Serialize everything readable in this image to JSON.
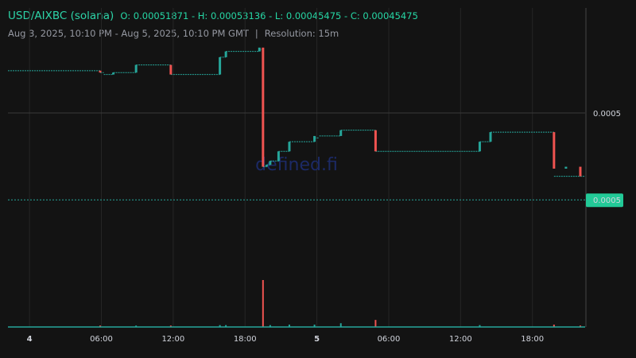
{
  "header": {
    "pair": "USD/AIXBC (solana)",
    "ohlc": "O: 0.00051871 - H: 0.00053136 - L: 0.00045475 - C: 0.00045475",
    "range": "Aug 3, 2025, 10:10 PM - Aug 5, 2025, 10:10 PM GMT",
    "separator": "|",
    "resolution": "Resolution: 15m"
  },
  "watermark": "defined.fi",
  "colors": {
    "up": "#26a69a",
    "down": "#ef5350",
    "background": "#131313",
    "grid": "#262626"
  },
  "chart_data": {
    "type": "candlestick",
    "x_tick_labels": [
      {
        "label": "4",
        "hour": 24,
        "bold": true
      },
      {
        "label": "06:00",
        "hour": 30,
        "bold": false
      },
      {
        "label": "12:00",
        "hour": 36,
        "bold": false
      },
      {
        "label": "18:00",
        "hour": 42,
        "bold": false
      },
      {
        "label": "5",
        "hour": 48,
        "bold": true
      },
      {
        "label": "06:00",
        "hour": 54,
        "bold": false
      },
      {
        "label": "12:00",
        "hour": 60,
        "bold": false
      },
      {
        "label": "18:00",
        "hour": 66,
        "bold": false
      }
    ],
    "x_range_hours": [
      22.2,
      70.4
    ],
    "y_range": [
      0.000418,
      0.000536
    ],
    "y_tick_labels": [
      {
        "label": "0.0005",
        "value": 0.0005
      }
    ],
    "current_price": {
      "label": "0.0005",
      "value": 0.00045475
    },
    "price_segments": [
      {
        "start": 22.2,
        "end": 29.9,
        "price": 0.000522
      },
      {
        "start": 29.9,
        "end": 30.2,
        "price": 0.000521
      },
      {
        "start": 30.2,
        "end": 31.0,
        "price": 0.00052
      },
      {
        "start": 31.0,
        "end": 32.0,
        "price": 0.000521
      },
      {
        "start": 32.0,
        "end": 32.9,
        "price": 0.000521
      },
      {
        "start": 32.9,
        "end": 35.8,
        "price": 0.000525
      },
      {
        "start": 35.8,
        "end": 39.9,
        "price": 0.00052
      },
      {
        "start": 39.9,
        "end": 40.4,
        "price": 0.000529
      },
      {
        "start": 40.4,
        "end": 43.2,
        "price": 0.000532
      },
      {
        "start": 43.2,
        "end": 43.5,
        "price": 0.000533
      },
      {
        "start": 43.5,
        "end": 43.8,
        "price": 0.000472
      },
      {
        "start": 43.8,
        "end": 44.1,
        "price": 0.000473
      },
      {
        "start": 44.1,
        "end": 44.8,
        "price": 0.000475
      },
      {
        "start": 44.8,
        "end": 45.7,
        "price": 0.00048
      },
      {
        "start": 45.7,
        "end": 47.8,
        "price": 0.000485
      },
      {
        "start": 47.8,
        "end": 48.2,
        "price": 0.000487
      },
      {
        "start": 48.2,
        "end": 50.0,
        "price": 0.000488
      },
      {
        "start": 50.0,
        "end": 52.9,
        "price": 0.000491
      },
      {
        "start": 52.9,
        "end": 61.6,
        "price": 0.00048
      },
      {
        "start": 61.6,
        "end": 62.5,
        "price": 0.000485
      },
      {
        "start": 62.5,
        "end": 67.8,
        "price": 0.00049
      },
      {
        "start": 67.8,
        "end": 70.4,
        "price": 0.000467
      }
    ],
    "candles": [
      {
        "t": 29.9,
        "open": 0.000522,
        "close": 0.000521
      },
      {
        "t": 31.0,
        "open": 0.00052,
        "close": 0.000521
      },
      {
        "t": 32.9,
        "open": 0.000521,
        "close": 0.000525
      },
      {
        "t": 35.8,
        "open": 0.000525,
        "close": 0.00052
      },
      {
        "t": 39.9,
        "open": 0.00052,
        "close": 0.000529
      },
      {
        "t": 40.4,
        "open": 0.000529,
        "close": 0.000532
      },
      {
        "t": 43.2,
        "open": 0.000532,
        "close": 0.000534
      },
      {
        "t": 43.5,
        "open": 0.000534,
        "close": 0.000472
      },
      {
        "t": 43.8,
        "open": 0.000472,
        "close": 0.000473
      },
      {
        "t": 44.1,
        "open": 0.000473,
        "close": 0.000475
      },
      {
        "t": 44.8,
        "open": 0.000475,
        "close": 0.00048
      },
      {
        "t": 45.7,
        "open": 0.00048,
        "close": 0.000485
      },
      {
        "t": 47.8,
        "open": 0.000485,
        "close": 0.000488
      },
      {
        "t": 50.0,
        "open": 0.000488,
        "close": 0.000491
      },
      {
        "t": 52.9,
        "open": 0.000491,
        "close": 0.00048
      },
      {
        "t": 61.6,
        "open": 0.00048,
        "close": 0.000485
      },
      {
        "t": 62.5,
        "open": 0.000485,
        "close": 0.00049
      },
      {
        "t": 67.8,
        "open": 0.00049,
        "close": 0.000471
      },
      {
        "t": 68.8,
        "open": 0.000471,
        "close": 0.000472
      },
      {
        "t": 70.0,
        "open": 0.000472,
        "close": 0.000467
      }
    ],
    "volume": [
      {
        "t": 29.9,
        "v": 0.3,
        "up": false
      },
      {
        "t": 32.9,
        "v": 0.3,
        "up": true
      },
      {
        "t": 35.8,
        "v": 0.3,
        "up": false
      },
      {
        "t": 39.9,
        "v": 0.4,
        "up": true
      },
      {
        "t": 40.4,
        "v": 0.4,
        "up": true
      },
      {
        "t": 43.5,
        "v": 10.0,
        "up": false
      },
      {
        "t": 44.1,
        "v": 0.4,
        "up": true
      },
      {
        "t": 45.7,
        "v": 0.5,
        "up": true
      },
      {
        "t": 47.8,
        "v": 0.5,
        "up": true
      },
      {
        "t": 50.0,
        "v": 0.8,
        "up": true
      },
      {
        "t": 52.9,
        "v": 1.5,
        "up": false
      },
      {
        "t": 61.6,
        "v": 0.4,
        "up": true
      },
      {
        "t": 67.8,
        "v": 0.5,
        "up": false
      },
      {
        "t": 70.0,
        "v": 0.3,
        "up": false
      }
    ],
    "volume_max": 10.0
  }
}
